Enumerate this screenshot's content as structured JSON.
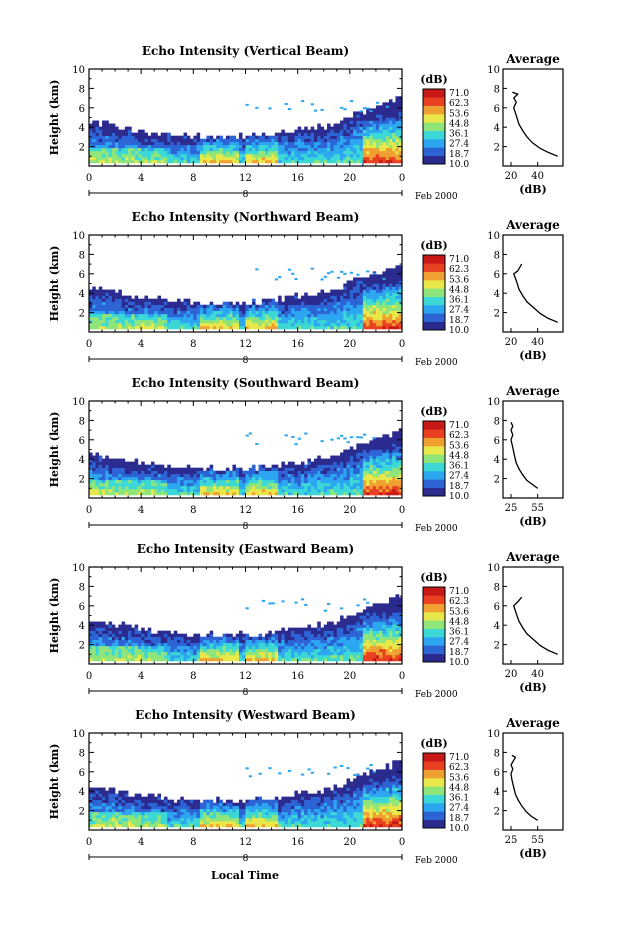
{
  "figure": {
    "xlabel": "Local Time",
    "date_label": "Feb 2000",
    "date_mark": "8",
    "colorbar_unit": "(dB)",
    "colorbar_labels": [
      "71.0",
      "62.3",
      "53.6",
      "44.8",
      "36.1",
      "27.4",
      "18.7",
      "10.0"
    ],
    "colorbar_colors": [
      "#2b2b8f",
      "#2c64d6",
      "#2ca6f0",
      "#3cd8d6",
      "#8fe57a",
      "#e8e84a",
      "#f0a030",
      "#e84020",
      "#c81818"
    ]
  },
  "chart_data": [
    {
      "type": "heatmap",
      "title": "Echo Intensity (Vertical Beam)",
      "ylabel": "Height (km)",
      "x_ticks": [
        "0",
        "4",
        "8",
        "12",
        "16",
        "20",
        "0"
      ],
      "y_ticks": [
        "10",
        "8",
        "6",
        "4",
        "2"
      ],
      "xlim": [
        0,
        24
      ],
      "ylim": [
        0,
        10
      ],
      "value_range_db": [
        10.0,
        71.0
      ],
      "profile": {
        "title": "Average",
        "xlabel": "(dB)",
        "x_ticks": [
          "20",
          "40"
        ],
        "y_ticks": [
          "10",
          "8",
          "6",
          "4",
          "2"
        ],
        "points": [
          [
            55,
            1.0
          ],
          [
            48,
            1.4
          ],
          [
            42,
            1.8
          ],
          [
            36,
            2.4
          ],
          [
            32,
            3.0
          ],
          [
            29,
            3.6
          ],
          [
            26,
            4.3
          ],
          [
            24,
            5.2
          ],
          [
            22,
            6.0
          ],
          [
            24,
            6.6
          ],
          [
            22,
            7.0
          ],
          [
            25,
            7.4
          ],
          [
            21,
            7.6
          ]
        ]
      }
    },
    {
      "type": "heatmap",
      "title": "Echo Intensity (Northward Beam)",
      "ylabel": "Height (km)",
      "x_ticks": [
        "0",
        "4",
        "8",
        "12",
        "16",
        "20",
        "0"
      ],
      "y_ticks": [
        "10",
        "8",
        "6",
        "4",
        "2"
      ],
      "xlim": [
        0,
        24
      ],
      "ylim": [
        0,
        10
      ],
      "value_range_db": [
        10.0,
        71.0
      ],
      "profile": {
        "title": "Average",
        "xlabel": "(dB)",
        "x_ticks": [
          "20",
          "40"
        ],
        "y_ticks": [
          "10",
          "8",
          "6",
          "4",
          "2"
        ],
        "points": [
          [
            55,
            1.0
          ],
          [
            48,
            1.4
          ],
          [
            42,
            1.9
          ],
          [
            37,
            2.5
          ],
          [
            32,
            3.1
          ],
          [
            29,
            3.7
          ],
          [
            26,
            4.4
          ],
          [
            24,
            5.3
          ],
          [
            22,
            6.0
          ],
          [
            25,
            6.3
          ],
          [
            28,
            7.0
          ]
        ]
      }
    },
    {
      "type": "heatmap",
      "title": "Echo Intensity (Southward Beam)",
      "ylabel": "Height (km)",
      "x_ticks": [
        "0",
        "4",
        "8",
        "12",
        "16",
        "20",
        "0"
      ],
      "y_ticks": [
        "10",
        "8",
        "6",
        "4",
        "2"
      ],
      "xlim": [
        0,
        24
      ],
      "ylim": [
        0,
        10
      ],
      "value_range_db": [
        10.0,
        71.0
      ],
      "profile": {
        "title": "Average",
        "xlabel": "(dB)",
        "x_ticks": [
          "25",
          "55"
        ],
        "y_ticks": [
          "10",
          "8",
          "6",
          "4",
          "2"
        ],
        "points": [
          [
            55,
            1.0
          ],
          [
            49,
            1.4
          ],
          [
            43,
            1.8
          ],
          [
            38,
            2.4
          ],
          [
            34,
            3.0
          ],
          [
            31,
            3.6
          ],
          [
            29,
            4.3
          ],
          [
            27,
            5.2
          ],
          [
            25,
            6.0
          ],
          [
            27,
            6.5
          ],
          [
            25,
            7.0
          ],
          [
            27,
            7.4
          ],
          [
            25,
            7.8
          ]
        ]
      }
    },
    {
      "type": "heatmap",
      "title": "Echo Intensity (Eastward Beam)",
      "ylabel": "Height (km)",
      "x_ticks": [
        "0",
        "4",
        "8",
        "12",
        "16",
        "20",
        "0"
      ],
      "y_ticks": [
        "10",
        "8",
        "6",
        "4",
        "2"
      ],
      "xlim": [
        0,
        24
      ],
      "ylim": [
        0,
        10
      ],
      "value_range_db": [
        10.0,
        71.0
      ],
      "profile": {
        "title": "Average",
        "xlabel": "(dB)",
        "x_ticks": [
          "20",
          "40"
        ],
        "y_ticks": [
          "10",
          "8",
          "6",
          "4",
          "2"
        ],
        "points": [
          [
            55,
            1.0
          ],
          [
            48,
            1.4
          ],
          [
            42,
            1.9
          ],
          [
            37,
            2.5
          ],
          [
            32,
            3.1
          ],
          [
            29,
            3.7
          ],
          [
            26,
            4.4
          ],
          [
            24,
            5.2
          ],
          [
            22,
            6.0
          ],
          [
            25,
            6.4
          ],
          [
            28,
            6.9
          ]
        ]
      }
    },
    {
      "type": "heatmap",
      "title": "Echo Intensity (Westward Beam)",
      "ylabel": "Height (km)",
      "x_ticks": [
        "0",
        "4",
        "8",
        "12",
        "16",
        "20",
        "0"
      ],
      "y_ticks": [
        "10",
        "8",
        "6",
        "4",
        "2"
      ],
      "xlim": [
        0,
        24
      ],
      "ylim": [
        0,
        10
      ],
      "value_range_db": [
        10.0,
        71.0
      ],
      "profile": {
        "title": "Average",
        "xlabel": "(dB)",
        "x_ticks": [
          "25",
          "55"
        ],
        "y_ticks": [
          "10",
          "8",
          "6",
          "4",
          "2"
        ],
        "points": [
          [
            55,
            1.0
          ],
          [
            48,
            1.4
          ],
          [
            42,
            1.9
          ],
          [
            37,
            2.5
          ],
          [
            33,
            3.1
          ],
          [
            30,
            3.7
          ],
          [
            28,
            4.4
          ],
          [
            26,
            5.2
          ],
          [
            25,
            5.8
          ],
          [
            27,
            6.3
          ],
          [
            25,
            6.7
          ],
          [
            30,
            7.5
          ],
          [
            26,
            7.7
          ]
        ]
      }
    }
  ]
}
